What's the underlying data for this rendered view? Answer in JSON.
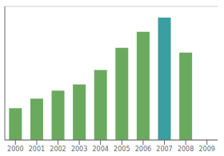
{
  "chart_data": {
    "type": "bar",
    "categories": [
      "2000",
      "2001",
      "2002",
      "2003",
      "2004",
      "2005",
      "2006",
      "2007",
      "2008",
      "2009"
    ],
    "values": [
      1.0,
      1.3,
      1.55,
      1.75,
      2.2,
      2.9,
      3.4,
      3.85,
      2.75,
      0
    ],
    "colors": [
      "#6aaa5e",
      "#6aaa5e",
      "#6aaa5e",
      "#6aaa5e",
      "#6aaa5e",
      "#6aaa5e",
      "#6aaa5e",
      "#3a9fa0",
      "#6aaa5e",
      "#6aaa5e"
    ],
    "ylim": [
      0,
      4.2
    ],
    "yticks": [
      0.8,
      1.6,
      2.4,
      3.2,
      4.0
    ],
    "grid": true,
    "tick_labels": "x"
  }
}
